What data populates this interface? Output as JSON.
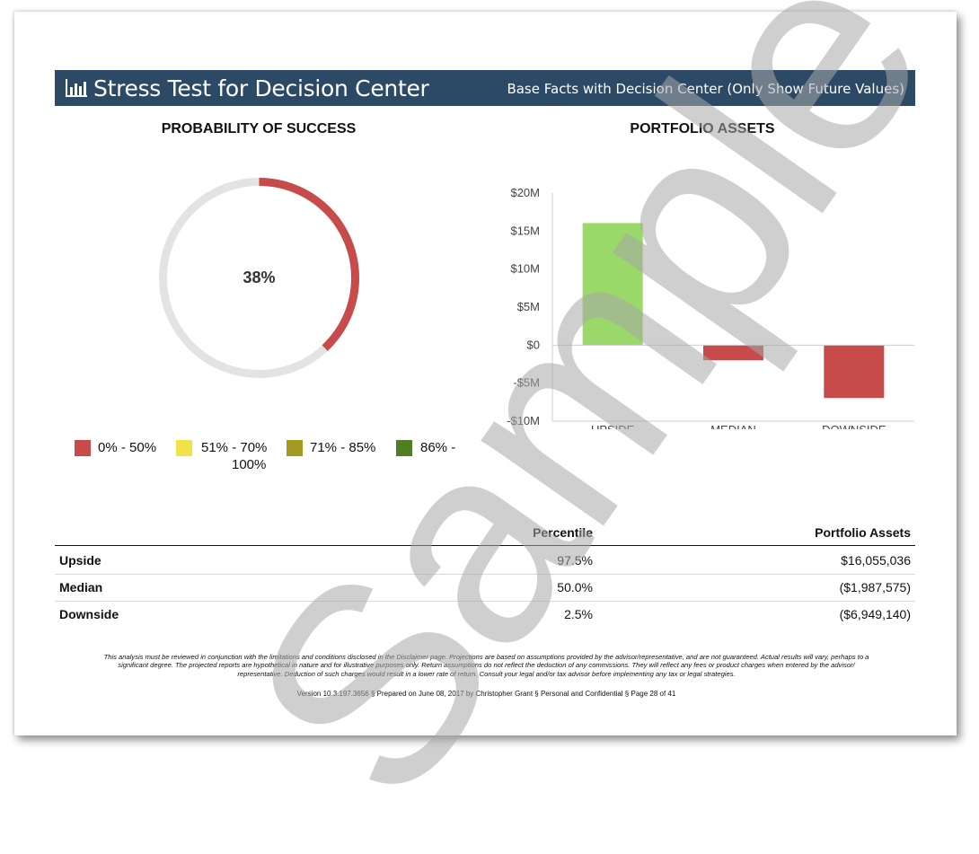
{
  "header": {
    "title": "Stress Test for Decision Center",
    "subtitle": "Base Facts with Decision Center (Only Show Future Values)",
    "icon": "bar-chart-icon",
    "background": "#2c4966"
  },
  "probability": {
    "title": "PROBABILITY OF SUCCESS",
    "value_label": "38%",
    "value": 0.38,
    "fill_color": "#c84b4b",
    "track_color": "#e3e3e3"
  },
  "legend": [
    {
      "label": "0% - 50%",
      "color": "#c84b4b"
    },
    {
      "label": "51% - 70%",
      "color": "#f2e24a"
    },
    {
      "label": "71% - 85%",
      "color": "#a49a1f"
    },
    {
      "label": "86% -",
      "label2": "100%",
      "color": "#4f7f25"
    }
  ],
  "assets_chart": {
    "title": "PORTFOLIO ASSETS"
  },
  "chart_data": {
    "type": "bar",
    "title": "PORTFOLIO ASSETS",
    "categories": [
      "UPSIDE",
      "MEDIAN",
      "DOWNSIDE"
    ],
    "values": [
      16055036,
      -1987575,
      -6949140
    ],
    "colors": [
      "#9bd86a",
      "#c84b4b",
      "#c84b4b"
    ],
    "ylim": [
      -10000000,
      20000000
    ],
    "yticks": [
      20000000,
      15000000,
      10000000,
      5000000,
      0,
      -5000000,
      -10000000
    ],
    "ytick_labels": [
      "$20M",
      "$15M",
      "$10M",
      "$5M",
      "$0",
      "-$5M",
      "-$10M"
    ],
    "grid": false
  },
  "table": {
    "headers": [
      "",
      "Percentile",
      "Portfolio Assets"
    ],
    "rows": [
      {
        "label": "Upside",
        "percentile": "97.5%",
        "assets": "$16,055,036"
      },
      {
        "label": "Median",
        "percentile": "50.0%",
        "assets": "($1,987,575)"
      },
      {
        "label": "Downside",
        "percentile": "2.5%",
        "assets": "($6,949,140)"
      }
    ]
  },
  "footer": {
    "disclaimer_line1": "This analysis must be reviewed in conjunction with the limitations and conditions disclosed in the Disclaimer page. Projections are based on assumptions provided by the advisor/representative, and are not guaranteed. Actual results will vary, perhaps to a",
    "disclaimer_line2": "significant degree. The projected reports are hypothetical in nature and for illustrative purposes only. Return assumptions do not reflect the deduction of any commissions.  They will reflect any fees or product charges when entered by the advisor/",
    "disclaimer_line3": "representative. Deduction of such charges would result in a lower rate of return. Consult your legal and/or tax advisor before implementing any tax or legal strategies.",
    "version": "Version 10.3.197.3656  §  Prepared on June 08, 2017 by Christopher Grant  §  Personal and Confidential  §  Page 28 of 41"
  },
  "watermark": "Sample"
}
